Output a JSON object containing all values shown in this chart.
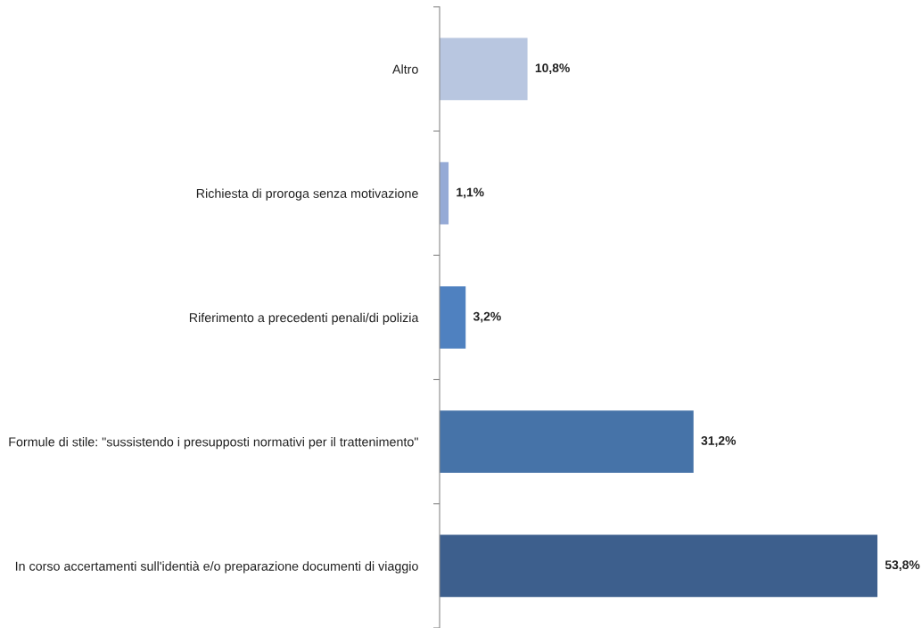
{
  "chart_data": {
    "type": "bar",
    "orientation": "horizontal",
    "categories": [
      "Altro",
      "Richiesta di proroga senza motivazione",
      "Riferimento a precedenti penali/di polizia",
      "Formule di stile: \"sussistendo i presupposti normativi per il trattenimento\"",
      "In corso accertamenti sull'identià e/o preparazione documenti di viaggio"
    ],
    "values": [
      10.8,
      1.1,
      3.2,
      31.2,
      53.8
    ],
    "colors": [
      "#b8c6e0",
      "#95aad6",
      "#4f81c0",
      "#4673a8",
      "#3d5f8d"
    ],
    "value_labels": [
      "10,8%",
      "1,1%",
      "3,2%",
      "31,2%",
      "53,8%"
    ],
    "tick_labels": "y"
  }
}
